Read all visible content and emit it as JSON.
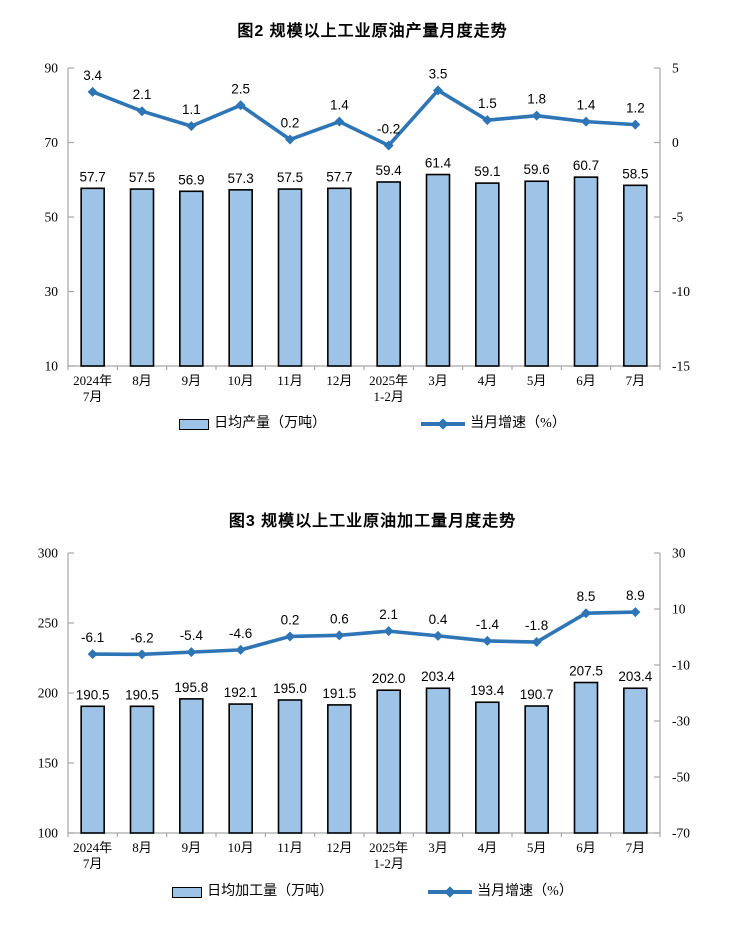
{
  "page": {
    "background": "#ffffff"
  },
  "colors": {
    "bar_fill": "#9DC3E6",
    "bar_stroke": "#000000",
    "line": "#2E75B6",
    "axis": "#A6A6A6",
    "text": "#000000"
  },
  "chart_data": [
    {
      "type": "bar+line",
      "name": "crude-oil-output",
      "title": "图2 规模以上工业原油产量月度走势",
      "categories": [
        [
          "2024年",
          "7月"
        ],
        [
          "8月"
        ],
        [
          "9月"
        ],
        [
          "10月"
        ],
        [
          "11月"
        ],
        [
          "12月"
        ],
        [
          "2025年",
          "1-2月"
        ],
        [
          "3月"
        ],
        [
          "4月"
        ],
        [
          "5月"
        ],
        [
          "6月"
        ],
        [
          "7月"
        ]
      ],
      "series": [
        {
          "name": "日均产量（万吨）",
          "type": "bar",
          "axis": "left",
          "values": [
            57.7,
            57.5,
            56.9,
            57.3,
            57.5,
            57.7,
            59.4,
            61.4,
            59.1,
            59.6,
            60.7,
            58.5
          ]
        },
        {
          "name": "当月增速（%）",
          "type": "line",
          "axis": "right",
          "values": [
            3.4,
            2.1,
            1.1,
            2.5,
            0.2,
            1.4,
            -0.2,
            3.5,
            1.5,
            1.8,
            1.4,
            1.2
          ]
        }
      ],
      "left_axis": {
        "min": 10,
        "max": 90,
        "ticks": [
          90,
          70,
          50,
          30,
          10
        ]
      },
      "right_axis": {
        "min": -15,
        "max": 5,
        "ticks": [
          5,
          0,
          -5,
          -10,
          -15
        ]
      },
      "grid": false,
      "legend_position": "bottom"
    },
    {
      "type": "bar+line",
      "name": "crude-oil-processing",
      "title": "图3 规模以上工业原油加工量月度走势",
      "categories": [
        [
          "2024年",
          "7月"
        ],
        [
          "8月"
        ],
        [
          "9月"
        ],
        [
          "10月"
        ],
        [
          "11月"
        ],
        [
          "12月"
        ],
        [
          "2025年",
          "1-2月"
        ],
        [
          "3月"
        ],
        [
          "4月"
        ],
        [
          "5月"
        ],
        [
          "6月"
        ],
        [
          "7月"
        ]
      ],
      "series": [
        {
          "name": "日均加工量（万吨）",
          "type": "bar",
          "axis": "left",
          "values": [
            190.5,
            190.5,
            195.8,
            192.1,
            195.0,
            191.5,
            202.0,
            203.4,
            193.4,
            190.7,
            207.5,
            203.4
          ]
        },
        {
          "name": "当月增速（%）",
          "type": "line",
          "axis": "right",
          "values": [
            -6.1,
            -6.2,
            -5.4,
            -4.6,
            0.2,
            0.6,
            2.1,
            0.4,
            -1.4,
            -1.8,
            8.5,
            8.9
          ]
        }
      ],
      "left_axis": {
        "min": 100,
        "max": 300,
        "ticks": [
          300,
          250,
          200,
          150,
          100
        ]
      },
      "right_axis": {
        "min": -70,
        "max": 30,
        "ticks": [
          30,
          10,
          -10,
          -30,
          -50,
          -70
        ]
      },
      "grid": false,
      "legend_position": "bottom"
    }
  ]
}
